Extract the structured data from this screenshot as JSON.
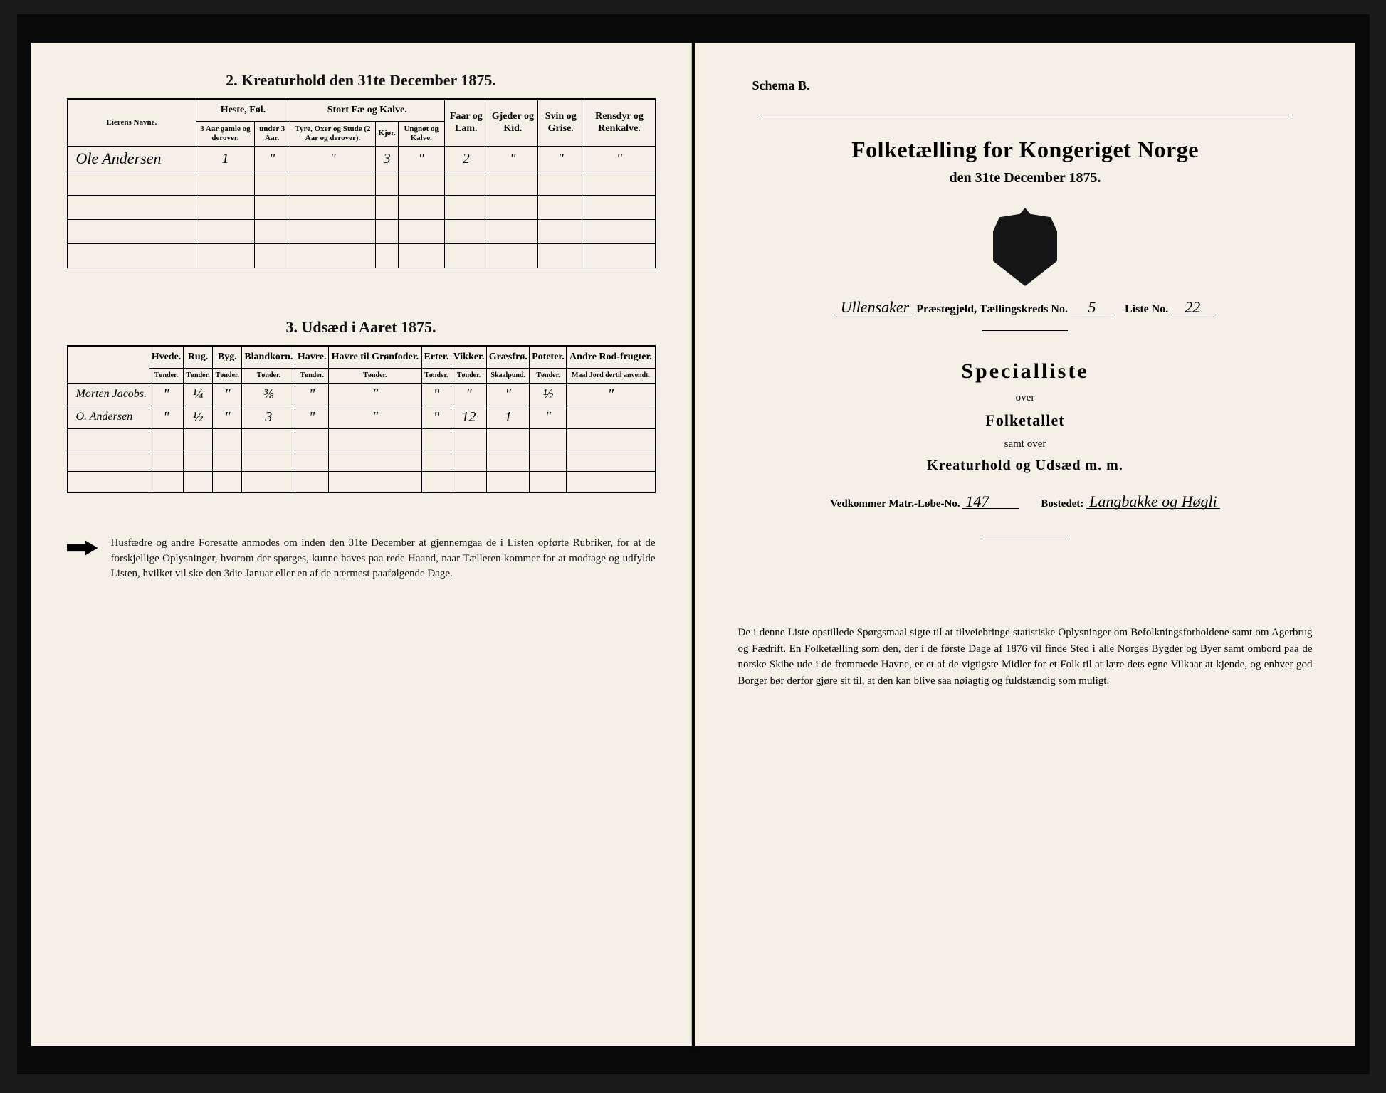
{
  "left": {
    "section2_title": "2. Kreaturhold den 31te December 1875.",
    "table2": {
      "name_header": "Eierens Navne.",
      "groups": [
        "Heste, Føl.",
        "Stort Fæ og Kalve.",
        "Faar og Lam.",
        "Gjeder og Kid.",
        "Svin og Grise.",
        "Rensdyr og Renkalve."
      ],
      "sub_horse": [
        "3 Aar gamle og derover.",
        "under 3 Aar."
      ],
      "sub_cattle": [
        "Tyre, Oxer og Stude (2 Aar og derover).",
        "Kjør.",
        "Ungnøt og Kalve."
      ],
      "row": {
        "name": "Ole Andersen",
        "vals": [
          "1",
          "\"",
          "\"",
          "3",
          "\"",
          "2",
          "\"",
          "\"",
          "\""
        ]
      }
    },
    "section3_title": "3. Udsæd i Aaret 1875.",
    "table3": {
      "headers": [
        [
          "Hvede.",
          "Tønder."
        ],
        [
          "Rug.",
          "Tønder."
        ],
        [
          "Byg.",
          "Tønder."
        ],
        [
          "Blandkorn.",
          "Tønder."
        ],
        [
          "Havre.",
          "Tønder."
        ],
        [
          "Havre til Grønfoder.",
          "Tønder."
        ],
        [
          "Erter.",
          "Tønder."
        ],
        [
          "Vikker.",
          "Tønder."
        ],
        [
          "Græsfrø.",
          "Skaalpund."
        ],
        [
          "Poteter.",
          "Tønder."
        ],
        [
          "Andre Rod-frugter.",
          "Maal Jord dertil anvendt."
        ]
      ],
      "rows": [
        {
          "name": "Morten Jacobs.",
          "vals": [
            "\"",
            "¼",
            "\"",
            "⅜",
            "\"",
            "\"",
            "\"",
            "\"",
            "\"",
            "½",
            "\""
          ]
        },
        {
          "name": "O. Andersen",
          "vals": [
            "\"",
            "½",
            "\"",
            "3",
            "\"",
            "\"",
            "\"",
            "12",
            "1",
            "\"",
            ""
          ]
        }
      ]
    },
    "footnote": "Husfædre og andre Foresatte anmodes om inden den 31te December at gjennemgaa de i Listen opførte Rubriker, for at de forskjellige Oplysninger, hvorom der spørges, kunne haves paa rede Haand, naar Tælleren kommer for at modtage og udfylde Listen, hvilket vil ske den 3die Januar eller en af de nærmest paafølgende Dage."
  },
  "right": {
    "schema": "Schema B.",
    "main_title": "Folketælling for Kongeriget Norge",
    "sub_title": "den 31te December 1875.",
    "parish_label": "Ullensaker",
    "parish_suffix": "Præstegjeld, Tællingskreds No.",
    "kreds_no": "5",
    "liste_label": "Liste No.",
    "liste_no": "22",
    "special": "Specialliste",
    "over": "over",
    "folketallet": "Folketallet",
    "samt": "samt over",
    "kreatur": "Kreaturhold og Udsæd m. m.",
    "vedk_label": "Vedkommer Matr.-Løbe-No.",
    "vedk_val": "147",
    "bost_label": "Bostedet:",
    "bost_val": "Langbakke og Høgli",
    "foot": "De i denne Liste opstillede Spørgsmaal sigte til at tilveiebringe statistiske Oplysninger om Befolkningsforholdene samt om Agerbrug og Fædrift. En Folketælling som den, der i de første Dage af 1876 vil finde Sted i alle Norges Bygder og Byer samt ombord paa de norske Skibe ude i de fremmede Havne, er et af de vigtigste Midler for et Folk til at lære dets egne Vilkaar at kjende, og enhver god Borger bør derfor gjøre sit til, at den kan blive saa nøiagtig og fuldstændig som muligt."
  }
}
